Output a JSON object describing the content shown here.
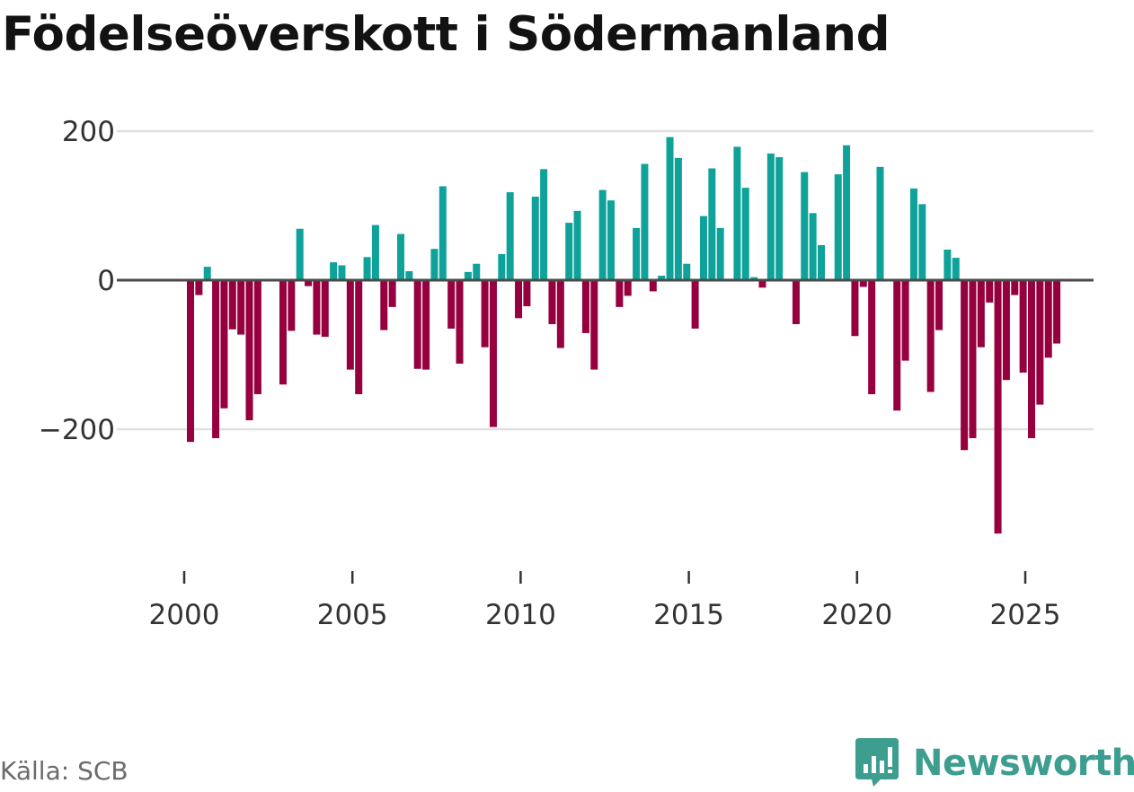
{
  "title": "Födelseöverskott i Södermanland",
  "source": "Källa: SCB",
  "brand": {
    "name": "Newsworthy",
    "icon": "newsworthy-logo-icon"
  },
  "colors": {
    "positive": "#0fa29a",
    "negative": "#96003f",
    "grid": "#e0e0e0",
    "zero_line": "#4a4a4a",
    "brand": "#3d9e8f"
  },
  "chart_data": {
    "type": "bar",
    "title": "Födelseöverskott i Södermanland",
    "xlabel": "",
    "ylabel": "",
    "ylim": [
      -380,
      200
    ],
    "xlim": [
      1999.2,
      2026.5
    ],
    "grid": true,
    "yticks": [
      200,
      0,
      -200
    ],
    "ytick_labels": [
      "200",
      "0",
      "−200"
    ],
    "xticks": [
      2000,
      2005,
      2010,
      2015,
      2020,
      2025
    ],
    "xtick_labels": [
      "2000",
      "2005",
      "2010",
      "2015",
      "2020",
      "2025"
    ],
    "frequency": "quarterly",
    "start": 2000.0,
    "step": 0.25,
    "values": [
      -217,
      -20,
      18,
      -212,
      -172,
      -66,
      -73,
      -188,
      -153,
      0,
      0,
      -140,
      -68,
      69,
      -8,
      -73,
      -76,
      24,
      20,
      -120,
      -153,
      31,
      74,
      -67,
      -36,
      62,
      12,
      -119,
      -120,
      42,
      126,
      -65,
      -112,
      11,
      22,
      -90,
      -197,
      35,
      118,
      -51,
      -35,
      112,
      149,
      -59,
      -91,
      77,
      93,
      -71,
      -120,
      121,
      107,
      -36,
      -21,
      70,
      156,
      -15,
      6,
      192,
      164,
      22,
      -65,
      86,
      150,
      70,
      2,
      179,
      124,
      4,
      -10,
      170,
      165,
      0,
      -59,
      145,
      90,
      47,
      0,
      142,
      181,
      -75,
      -9,
      -153,
      152,
      0,
      -175,
      -108,
      123,
      102,
      -150,
      -67,
      41,
      30,
      -228,
      -212,
      -90,
      -30,
      -340,
      -134,
      -20,
      -124,
      -212,
      -167,
      -104,
      -85
    ]
  }
}
